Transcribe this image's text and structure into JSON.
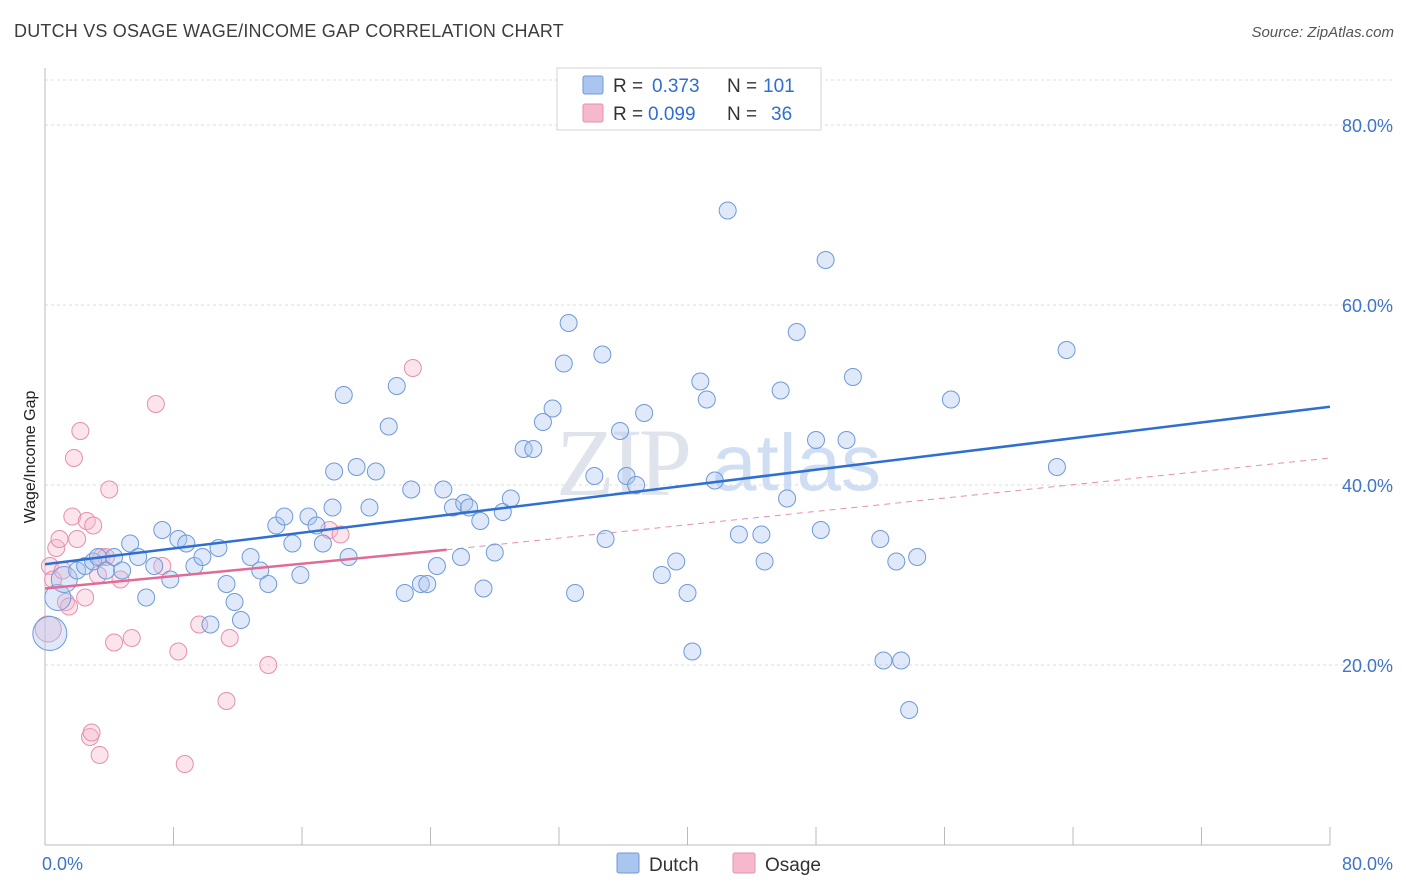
{
  "title": "DUTCH VS OSAGE WAGE/INCOME GAP CORRELATION CHART",
  "source": "Source: ZipAtlas.com",
  "watermark": {
    "zip": "ZIP",
    "atlas": "atlas"
  },
  "colors": {
    "dutch_fill": "#aac6ef",
    "dutch_stroke": "#6f9ad8",
    "dutch_line": "#2e6fd0",
    "osage_fill": "#f6b8cd",
    "osage_stroke": "#e58fae",
    "osage_line": "#e06b95",
    "value_blue": "#2e6fd0",
    "label_dark": "#333333"
  },
  "legend": {
    "rows": [
      {
        "r_label": "R =",
        "r_value": "0.373",
        "n_label": "N =",
        "n_value": "101"
      },
      {
        "r_label": "R =",
        "r_value": "0.099",
        "n_label": "N =",
        "n_value": "36"
      }
    ]
  },
  "chart_data": {
    "type": "scatter",
    "title": "DUTCH VS OSAGE WAGE/INCOME GAP CORRELATION CHART",
    "xlabel": "",
    "ylabel": "Wage/Income Gap",
    "xlim": [
      0,
      80
    ],
    "ylim": [
      0,
      85
    ],
    "x_tick_labels": [
      "0.0%",
      "80.0%"
    ],
    "y_ticks": [
      20,
      40,
      60,
      80
    ],
    "y_tick_labels": [
      "20.0%",
      "40.0%",
      "60.0%",
      "80.0%"
    ],
    "grid": true,
    "legend_position": "top-center",
    "series": [
      {
        "name": "Dutch",
        "r": 0.373,
        "n": 101,
        "trend": {
          "x": [
            0,
            80
          ],
          "y": [
            31.2,
            48.7
          ]
        },
        "points": [
          {
            "x": 0.3,
            "y": 23.5,
            "s": 3
          },
          {
            "x": 0.8,
            "y": 27.5,
            "s": 2
          },
          {
            "x": 1.2,
            "y": 29.5,
            "s": 2
          },
          {
            "x": 2.0,
            "y": 30.5,
            "s": 1
          },
          {
            "x": 2.5,
            "y": 31.0,
            "s": 1
          },
          {
            "x": 3.0,
            "y": 31.5,
            "s": 1
          },
          {
            "x": 3.3,
            "y": 32.0,
            "s": 1
          },
          {
            "x": 3.8,
            "y": 30.5,
            "s": 1
          },
          {
            "x": 4.3,
            "y": 32.0,
            "s": 1
          },
          {
            "x": 4.8,
            "y": 30.5,
            "s": 1
          },
          {
            "x": 5.3,
            "y": 33.5,
            "s": 1
          },
          {
            "x": 5.8,
            "y": 32.0,
            "s": 1
          },
          {
            "x": 6.3,
            "y": 27.5,
            "s": 1
          },
          {
            "x": 6.8,
            "y": 31.0,
            "s": 1
          },
          {
            "x": 7.3,
            "y": 35.0,
            "s": 1
          },
          {
            "x": 7.8,
            "y": 29.5,
            "s": 1
          },
          {
            "x": 8.3,
            "y": 34.0,
            "s": 1
          },
          {
            "x": 8.8,
            "y": 33.5,
            "s": 1
          },
          {
            "x": 9.3,
            "y": 31.0,
            "s": 1
          },
          {
            "x": 9.8,
            "y": 32.0,
            "s": 1
          },
          {
            "x": 10.3,
            "y": 24.5,
            "s": 1
          },
          {
            "x": 10.8,
            "y": 33.0,
            "s": 1
          },
          {
            "x": 11.3,
            "y": 29.0,
            "s": 1
          },
          {
            "x": 11.8,
            "y": 27.0,
            "s": 1
          },
          {
            "x": 12.2,
            "y": 25.0,
            "s": 1
          },
          {
            "x": 12.8,
            "y": 32.0,
            "s": 1
          },
          {
            "x": 13.4,
            "y": 30.5,
            "s": 1
          },
          {
            "x": 13.9,
            "y": 29.0,
            "s": 1
          },
          {
            "x": 14.4,
            "y": 35.5,
            "s": 1
          },
          {
            "x": 14.9,
            "y": 36.5,
            "s": 1
          },
          {
            "x": 15.4,
            "y": 33.5,
            "s": 1
          },
          {
            "x": 15.9,
            "y": 30.0,
            "s": 1
          },
          {
            "x": 16.4,
            "y": 36.5,
            "s": 1
          },
          {
            "x": 16.9,
            "y": 35.5,
            "s": 1
          },
          {
            "x": 17.3,
            "y": 33.5,
            "s": 1
          },
          {
            "x": 17.9,
            "y": 37.5,
            "s": 1
          },
          {
            "x": 18.0,
            "y": 41.5,
            "s": 1
          },
          {
            "x": 18.6,
            "y": 50.0,
            "s": 1
          },
          {
            "x": 19.4,
            "y": 42.0,
            "s": 1
          },
          {
            "x": 18.9,
            "y": 32.0,
            "s": 1
          },
          {
            "x": 20.2,
            "y": 37.5,
            "s": 1
          },
          {
            "x": 20.6,
            "y": 41.5,
            "s": 1
          },
          {
            "x": 21.4,
            "y": 46.5,
            "s": 1
          },
          {
            "x": 21.9,
            "y": 51.0,
            "s": 1
          },
          {
            "x": 22.4,
            "y": 28.0,
            "s": 1
          },
          {
            "x": 22.8,
            "y": 39.5,
            "s": 1
          },
          {
            "x": 23.4,
            "y": 29.0,
            "s": 1
          },
          {
            "x": 23.8,
            "y": 29.0,
            "s": 1
          },
          {
            "x": 24.4,
            "y": 31.0,
            "s": 1
          },
          {
            "x": 24.8,
            "y": 39.5,
            "s": 1
          },
          {
            "x": 25.4,
            "y": 37.5,
            "s": 1
          },
          {
            "x": 25.9,
            "y": 32.0,
            "s": 1
          },
          {
            "x": 26.1,
            "y": 38.0,
            "s": 1
          },
          {
            "x": 26.4,
            "y": 37.5,
            "s": 1
          },
          {
            "x": 27.1,
            "y": 36.0,
            "s": 1
          },
          {
            "x": 27.3,
            "y": 28.5,
            "s": 1
          },
          {
            "x": 28.0,
            "y": 32.5,
            "s": 1
          },
          {
            "x": 28.5,
            "y": 37.0,
            "s": 1
          },
          {
            "x": 29.0,
            "y": 38.5,
            "s": 1
          },
          {
            "x": 29.8,
            "y": 44.0,
            "s": 1
          },
          {
            "x": 30.4,
            "y": 44.0,
            "s": 1
          },
          {
            "x": 31.0,
            "y": 47.0,
            "s": 1
          },
          {
            "x": 31.6,
            "y": 48.5,
            "s": 1
          },
          {
            "x": 32.3,
            "y": 53.5,
            "s": 1
          },
          {
            "x": 32.6,
            "y": 58.0,
            "s": 1
          },
          {
            "x": 33.0,
            "y": 28.0,
            "s": 1
          },
          {
            "x": 34.2,
            "y": 41.0,
            "s": 1
          },
          {
            "x": 34.7,
            "y": 54.5,
            "s": 1
          },
          {
            "x": 34.9,
            "y": 34.0,
            "s": 1
          },
          {
            "x": 35.8,
            "y": 46.0,
            "s": 1
          },
          {
            "x": 36.2,
            "y": 41.0,
            "s": 1
          },
          {
            "x": 36.8,
            "y": 40.0,
            "s": 1
          },
          {
            "x": 37.3,
            "y": 48.0,
            "s": 1
          },
          {
            "x": 38.4,
            "y": 30.0,
            "s": 1
          },
          {
            "x": 39.3,
            "y": 31.5,
            "s": 1
          },
          {
            "x": 40.0,
            "y": 28.0,
            "s": 1
          },
          {
            "x": 40.3,
            "y": 21.5,
            "s": 1
          },
          {
            "x": 40.8,
            "y": 51.5,
            "s": 1
          },
          {
            "x": 41.2,
            "y": 49.5,
            "s": 1
          },
          {
            "x": 41.7,
            "y": 40.5,
            "s": 1
          },
          {
            "x": 42.5,
            "y": 70.5,
            "s": 1
          },
          {
            "x": 43.2,
            "y": 34.5,
            "s": 1
          },
          {
            "x": 44.6,
            "y": 34.5,
            "s": 1
          },
          {
            "x": 44.8,
            "y": 31.5,
            "s": 1
          },
          {
            "x": 45.8,
            "y": 50.5,
            "s": 1
          },
          {
            "x": 46.2,
            "y": 38.5,
            "s": 1
          },
          {
            "x": 46.8,
            "y": 57.0,
            "s": 1
          },
          {
            "x": 48.0,
            "y": 45.0,
            "s": 1
          },
          {
            "x": 48.3,
            "y": 35.0,
            "s": 1
          },
          {
            "x": 48.6,
            "y": 65.0,
            "s": 1
          },
          {
            "x": 49.9,
            "y": 45.0,
            "s": 1
          },
          {
            "x": 50.3,
            "y": 52.0,
            "s": 1
          },
          {
            "x": 52.0,
            "y": 34.0,
            "s": 1
          },
          {
            "x": 52.2,
            "y": 20.5,
            "s": 1
          },
          {
            "x": 53.0,
            "y": 31.5,
            "s": 1
          },
          {
            "x": 53.3,
            "y": 20.5,
            "s": 1
          },
          {
            "x": 53.8,
            "y": 15.0,
            "s": 1
          },
          {
            "x": 54.3,
            "y": 32.0,
            "s": 1
          },
          {
            "x": 56.4,
            "y": 49.5,
            "s": 1
          },
          {
            "x": 63.0,
            "y": 42.0,
            "s": 1
          },
          {
            "x": 63.6,
            "y": 55.0,
            "s": 1
          }
        ]
      },
      {
        "name": "Osage",
        "r": 0.099,
        "n": 36,
        "trend": {
          "x": [
            0,
            25
          ],
          "y": [
            28.5,
            32.8
          ]
        },
        "trend_dashed": {
          "x": [
            25,
            80
          ],
          "y": [
            32.8,
            43.0
          ]
        },
        "points": [
          {
            "x": 0.2,
            "y": 24.0,
            "s": 2
          },
          {
            "x": 0.3,
            "y": 31.0,
            "s": 1
          },
          {
            "x": 0.5,
            "y": 29.5,
            "s": 1
          },
          {
            "x": 0.7,
            "y": 33.0,
            "s": 1
          },
          {
            "x": 0.9,
            "y": 34.0,
            "s": 1
          },
          {
            "x": 1.1,
            "y": 30.5,
            "s": 1
          },
          {
            "x": 1.3,
            "y": 27.0,
            "s": 1
          },
          {
            "x": 1.5,
            "y": 26.5,
            "s": 1
          },
          {
            "x": 1.7,
            "y": 36.5,
            "s": 1
          },
          {
            "x": 1.8,
            "y": 43.0,
            "s": 1
          },
          {
            "x": 2.0,
            "y": 34.0,
            "s": 1
          },
          {
            "x": 2.2,
            "y": 46.0,
            "s": 1
          },
          {
            "x": 2.5,
            "y": 27.5,
            "s": 1
          },
          {
            "x": 2.6,
            "y": 36.0,
            "s": 1
          },
          {
            "x": 2.8,
            "y": 12.0,
            "s": 1
          },
          {
            "x": 2.9,
            "y": 12.5,
            "s": 1
          },
          {
            "x": 3.0,
            "y": 35.5,
            "s": 1
          },
          {
            "x": 3.3,
            "y": 30.0,
            "s": 1
          },
          {
            "x": 3.5,
            "y": 32.0,
            "s": 1
          },
          {
            "x": 3.4,
            "y": 10.0,
            "s": 1
          },
          {
            "x": 3.8,
            "y": 32.0,
            "s": 1
          },
          {
            "x": 4.0,
            "y": 39.5,
            "s": 1
          },
          {
            "x": 4.3,
            "y": 22.5,
            "s": 1
          },
          {
            "x": 4.7,
            "y": 29.5,
            "s": 1
          },
          {
            "x": 5.4,
            "y": 23.0,
            "s": 1
          },
          {
            "x": 6.9,
            "y": 49.0,
            "s": 1
          },
          {
            "x": 7.3,
            "y": 31.0,
            "s": 1
          },
          {
            "x": 8.3,
            "y": 21.5,
            "s": 1
          },
          {
            "x": 8.7,
            "y": 9.0,
            "s": 1
          },
          {
            "x": 9.6,
            "y": 24.5,
            "s": 1
          },
          {
            "x": 11.3,
            "y": 16.0,
            "s": 1
          },
          {
            "x": 11.5,
            "y": 23.0,
            "s": 1
          },
          {
            "x": 13.9,
            "y": 20.0,
            "s": 1
          },
          {
            "x": 17.7,
            "y": 35.0,
            "s": 1
          },
          {
            "x": 18.4,
            "y": 34.5,
            "s": 1
          },
          {
            "x": 22.9,
            "y": 53.0,
            "s": 1
          }
        ]
      }
    ]
  },
  "bottom_legend": [
    {
      "label": "Dutch"
    },
    {
      "label": "Osage"
    }
  ]
}
